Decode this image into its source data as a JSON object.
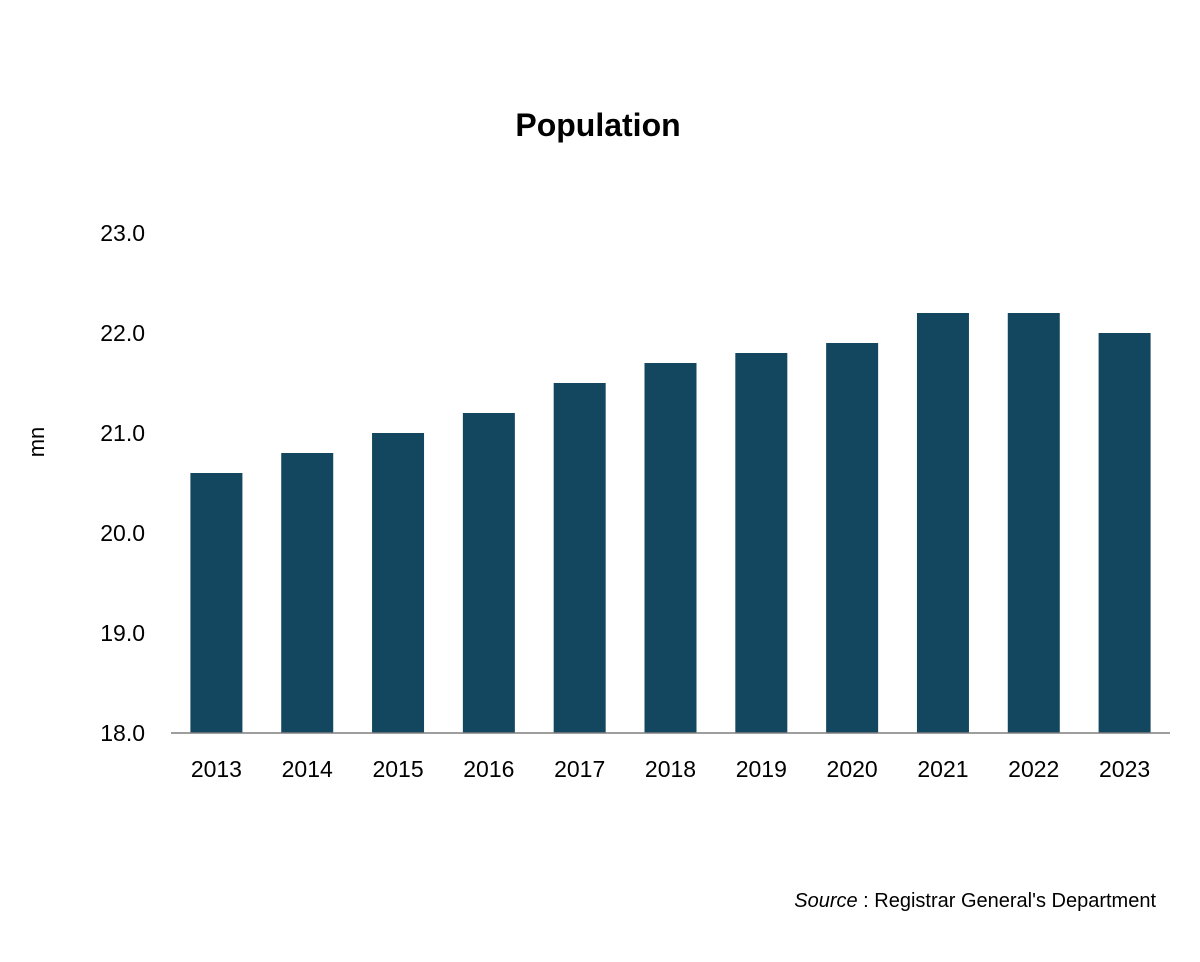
{
  "chart_data": {
    "type": "bar",
    "title": "Population",
    "xlabel": "",
    "ylabel": "mn",
    "categories": [
      "2013",
      "2014",
      "2015",
      "2016",
      "2017",
      "2018",
      "2019",
      "2020",
      "2021",
      "2022",
      "2023"
    ],
    "values": [
      20.6,
      20.8,
      21.0,
      21.2,
      21.5,
      21.7,
      21.8,
      21.9,
      22.2,
      22.2,
      22.0
    ],
    "ylim": [
      18.0,
      23.0
    ],
    "yticks": [
      "18.0",
      "19.0",
      "20.0",
      "21.0",
      "22.0",
      "23.0"
    ],
    "grid": false,
    "legend": "none",
    "bar_color": "#12475f"
  },
  "source": {
    "label": "Source",
    "text": ": Registrar General's Department"
  }
}
